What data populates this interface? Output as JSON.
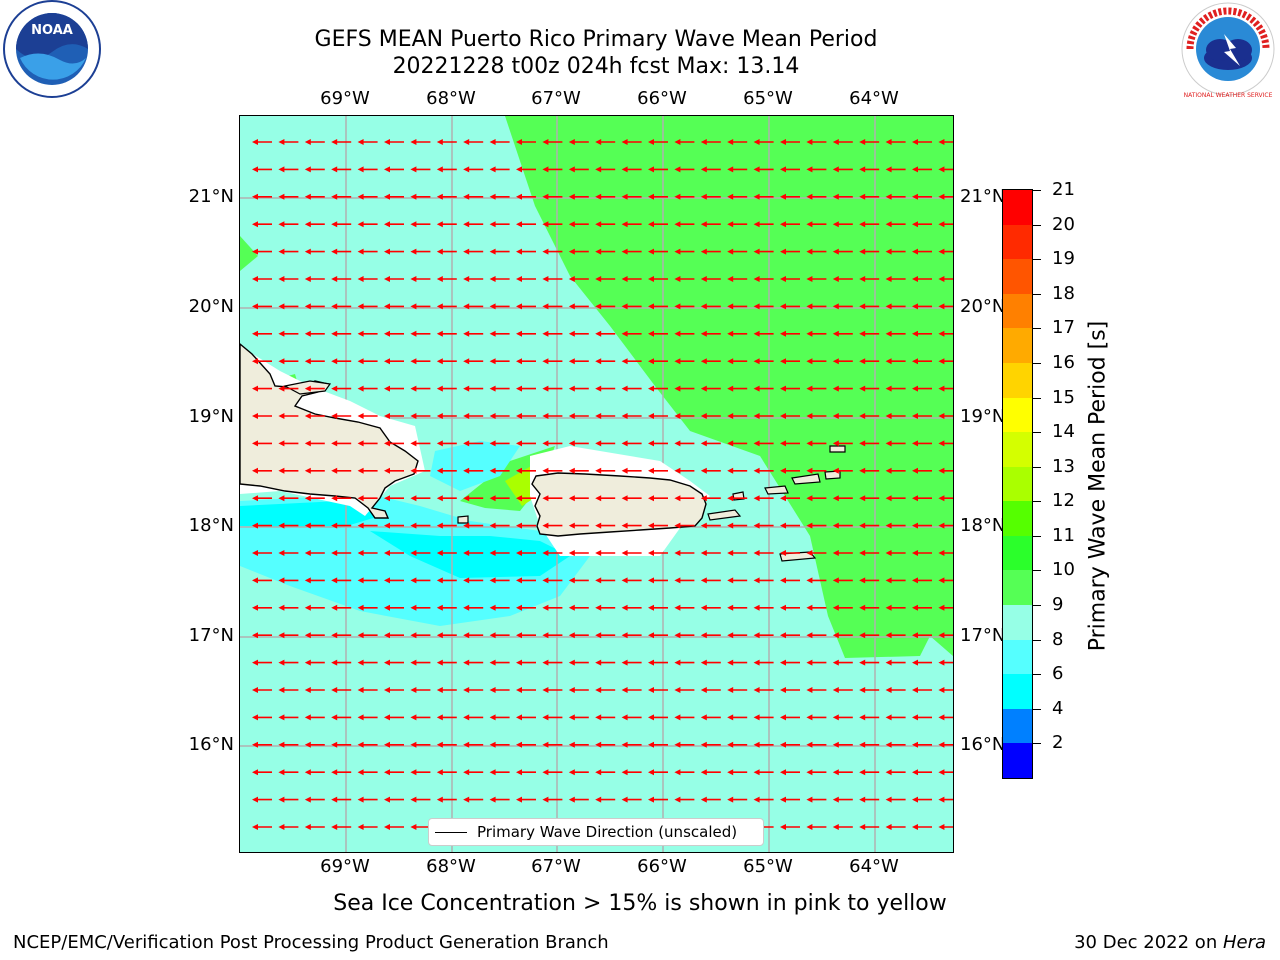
{
  "title": {
    "line1": "GEFS MEAN Puerto Rico Primary Wave Mean Period",
    "line2": "20221228 t00z 024h fcst   Max: 13.14"
  },
  "map": {
    "lon_labels": [
      "69°W",
      "68°W",
      "67°W",
      "66°W",
      "65°W",
      "64°W"
    ],
    "lat_labels": [
      "21°N",
      "20°N",
      "19°N",
      "18°N",
      "17°N",
      "16°N"
    ],
    "lon_range": [
      -70.0,
      -63.25
    ],
    "lat_range": [
      15.0,
      21.75
    ],
    "grid": true,
    "arrow_color": "#ff0000",
    "land_color": "#efeddc",
    "legend_label": "Primary Wave Direction (unscaled)"
  },
  "colorbar": {
    "title": "Primary Wave Mean Period [s]",
    "ticks": [
      "21",
      "20",
      "19",
      "18",
      "17",
      "16",
      "15",
      "14",
      "13",
      "12",
      "11",
      "10",
      "9",
      "8",
      "6",
      "4",
      "2"
    ],
    "segments_top_to_bottom": [
      {
        "range": "20-21",
        "color": "#ff0000"
      },
      {
        "range": "19-20",
        "color": "#ff2a00"
      },
      {
        "range": "18-19",
        "color": "#ff5500"
      },
      {
        "range": "17-18",
        "color": "#ff8000"
      },
      {
        "range": "16-17",
        "color": "#ffaa00"
      },
      {
        "range": "15-16",
        "color": "#ffd400"
      },
      {
        "range": "14-15",
        "color": "#ffff00"
      },
      {
        "range": "13-14",
        "color": "#d4ff00"
      },
      {
        "range": "12-13",
        "color": "#aaff00"
      },
      {
        "range": "11-12",
        "color": "#55ff00"
      },
      {
        "range": "10-11",
        "color": "#2bff2b"
      },
      {
        "range": "9-10",
        "color": "#55ff55"
      },
      {
        "range": "8-9",
        "color": "#96ffe6"
      },
      {
        "range": "6-8",
        "color": "#55ffff"
      },
      {
        "range": "4-6",
        "color": "#00ffff"
      },
      {
        "range": "2-4",
        "color": "#0080ff"
      },
      {
        "range": "0-2",
        "color": "#0000ff"
      }
    ]
  },
  "notes": {
    "ice": "Sea Ice Concentration > 15% is shown in pink to yellow"
  },
  "footer": {
    "left": "NCEP/EMC/Verification Post Processing Product Generation Branch",
    "right_date": "30 Dec 2022 on ",
    "right_host": "Hera"
  },
  "logos": {
    "noaa_text": "NOAA",
    "nws_text": "NATIONAL WEATHER SERVICE"
  }
}
